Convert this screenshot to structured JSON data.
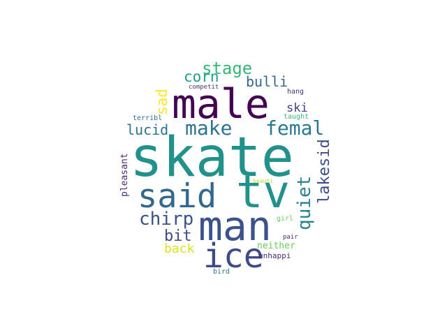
{
  "wordcloud": {
    "words": {
      "skate": "skate",
      "male": "male",
      "tv": "tv",
      "man": "man",
      "said": "said",
      "ice": "ice",
      "make": "make",
      "femal": "femal",
      "stage": "stage",
      "corn": "corn",
      "bulli": "bulli",
      "sad": "sad",
      "chirp": "chirp",
      "quiet": "quiet",
      "lakesid": "lakesid",
      "lucid": "lucid",
      "bit": "bit",
      "back": "back",
      "ski": "ski",
      "pleasant": "pleasant",
      "neither": "neither",
      "unhappi": "unhappi",
      "terribl": "terribl",
      "competit": "competit",
      "hang": "hang",
      "taught": "taught",
      "beauti": "beauti",
      "girl": "girl",
      "pair": "pair",
      "bird": "bird"
    },
    "colors": {
      "skate": "#21918c",
      "male": "#440154",
      "tv": "#21918c",
      "man": "#3b528b",
      "said": "#31688e",
      "ice": "#3e4a89",
      "make": "#2c728e",
      "femal": "#2a788e",
      "stage": "#35b779",
      "corn": "#1f9e89",
      "bulli": "#31688e",
      "sad": "#fde725",
      "chirp": "#3b528b",
      "quiet": "#26828e",
      "lakesid": "#3e4a89",
      "lucid": "#2c728e",
      "bit": "#3e4a89",
      "back": "#dde318",
      "ski": "#414487",
      "pleasant": "#482878",
      "neither": "#6ccd5a",
      "unhappi": "#472c7a",
      "terribl": "#2d708e",
      "competit": "#443983",
      "hang": "#46327e",
      "taught": "#3bbb75",
      "beauti": "#addc30",
      "girl": "#6ece58",
      "pair": "#46307e",
      "bird": "#2c728e"
    }
  }
}
